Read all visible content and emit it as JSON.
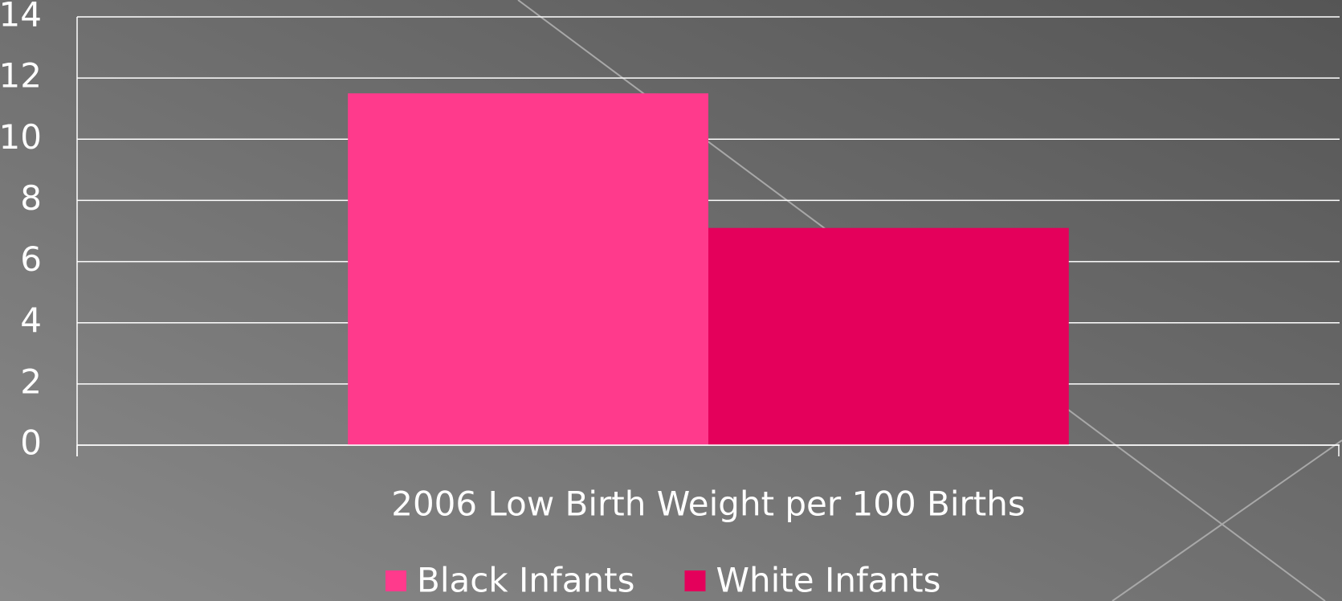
{
  "chart_data": {
    "type": "bar",
    "categories": [
      "2006 Low Birth Weight per 100 Births"
    ],
    "series": [
      {
        "name": "Black Infants",
        "color": "#ff3a8c",
        "values": [
          11.5
        ]
      },
      {
        "name": "White Infants",
        "color": "#e4005b",
        "values": [
          7.1
        ]
      }
    ],
    "ylim": [
      0,
      14
    ],
    "yticks": [
      0,
      2,
      4,
      6,
      8,
      10,
      12,
      14
    ],
    "grid": true,
    "legend": "bottom"
  }
}
